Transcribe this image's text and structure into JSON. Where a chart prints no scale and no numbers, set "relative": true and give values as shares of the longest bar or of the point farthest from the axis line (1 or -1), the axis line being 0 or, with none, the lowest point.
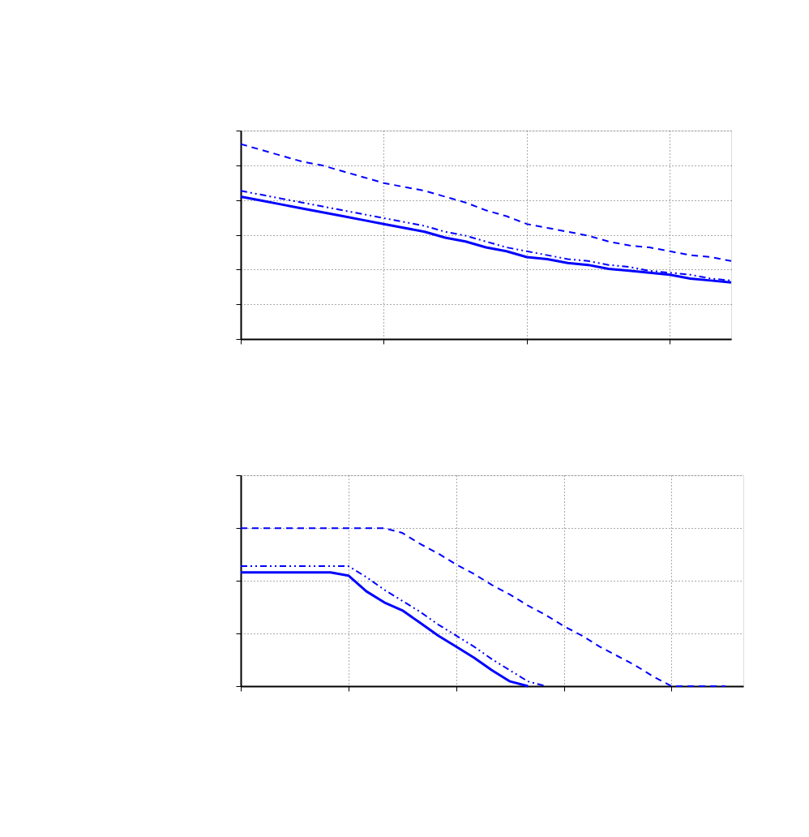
{
  "chart_data": [
    {
      "type": "line",
      "relative": true,
      "grid": true,
      "categories": [
        null,
        null,
        null,
        null,
        null,
        null,
        null,
        null,
        null,
        null,
        null,
        null,
        null,
        null,
        null,
        null,
        null,
        null,
        null,
        null,
        null,
        null,
        null,
        null,
        null
      ],
      "series": [
        {
          "color": "#0000ff",
          "line_style": "dashed",
          "values": [
            1.0,
            0.97,
            0.94,
            0.91,
            0.89,
            0.86,
            0.83,
            0.8,
            0.78,
            0.76,
            0.73,
            0.7,
            0.66,
            0.63,
            0.59,
            0.57,
            0.55,
            0.53,
            0.5,
            0.48,
            0.47,
            0.45,
            0.43,
            0.42,
            0.4
          ]
        },
        {
          "color": "#0000ff",
          "line_style": "dashdot",
          "values": [
            0.76,
            0.74,
            0.72,
            0.7,
            0.68,
            0.66,
            0.64,
            0.62,
            0.6,
            0.58,
            0.55,
            0.53,
            0.5,
            0.47,
            0.45,
            0.43,
            0.41,
            0.4,
            0.38,
            0.37,
            0.35,
            0.34,
            0.33,
            0.31,
            0.3
          ]
        },
        {
          "color": "#0000ff",
          "line_style": "solid",
          "values": [
            0.73,
            0.71,
            0.69,
            0.67,
            0.65,
            0.63,
            0.61,
            0.59,
            0.57,
            0.55,
            0.52,
            0.5,
            0.47,
            0.45,
            0.42,
            0.41,
            0.39,
            0.38,
            0.36,
            0.35,
            0.34,
            0.33,
            0.31,
            0.3,
            0.29
          ]
        }
      ]
    },
    {
      "type": "line",
      "relative": true,
      "grid": true,
      "categories": [
        null,
        null,
        null,
        null,
        null,
        null,
        null,
        null,
        null,
        null,
        null,
        null,
        null,
        null,
        null,
        null,
        null,
        null,
        null,
        null,
        null,
        null,
        null,
        null,
        null,
        null,
        null,
        null,
        null
      ],
      "series": [
        {
          "color": "#0000ff",
          "line_style": "dashed",
          "values": [
            1.0,
            1.0,
            1.0,
            1.0,
            1.0,
            1.0,
            1.0,
            1.0,
            1.0,
            0.97,
            0.9,
            0.84,
            0.77,
            0.71,
            0.64,
            0.58,
            0.51,
            0.45,
            0.38,
            0.32,
            0.25,
            0.19,
            0.13,
            0.06,
            0,
            0,
            0,
            0,
            null
          ]
        },
        {
          "color": "#0000ff",
          "line_style": "dashdot",
          "values": [
            0.76,
            0.76,
            0.76,
            0.76,
            0.76,
            0.76,
            0.76,
            0.69,
            0.61,
            0.54,
            0.47,
            0.39,
            0.32,
            0.25,
            0.17,
            0.1,
            0.03,
            0,
            null,
            null,
            null,
            null,
            null,
            null,
            null,
            null,
            null,
            null,
            null
          ]
        },
        {
          "color": "#0000ff",
          "line_style": "solid",
          "values": [
            0.72,
            0.72,
            0.72,
            0.72,
            0.72,
            0.72,
            0.7,
            0.6,
            0.53,
            0.48,
            0.4,
            0.32,
            0.25,
            0.18,
            0.1,
            0.03,
            0,
            null,
            null,
            null,
            null,
            null,
            null,
            null,
            null,
            null,
            null,
            null,
            null
          ]
        }
      ]
    }
  ]
}
